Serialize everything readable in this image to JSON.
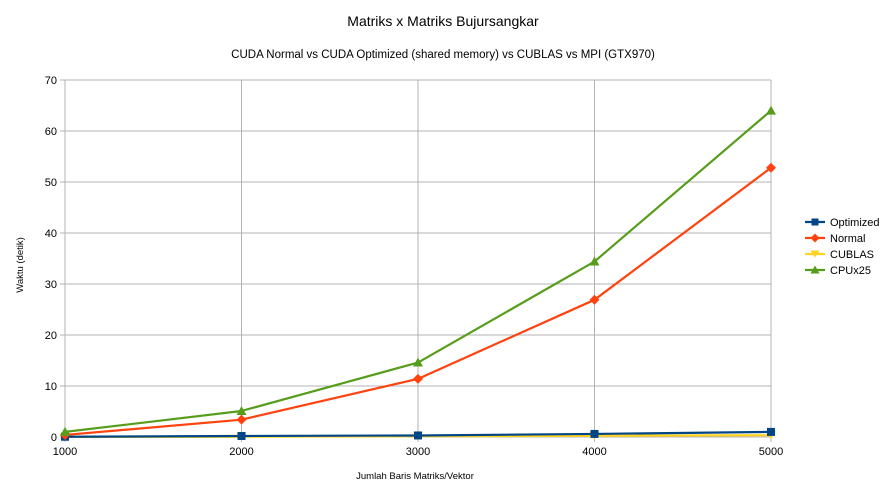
{
  "chart_data": {
    "type": "line",
    "title": "Matriks x Matriks Bujursangkar",
    "subtitle": "CUDA Normal vs CUDA Optimized (shared memory) vs CUBLAS vs MPI (GTX970)",
    "xlabel": "Jumlah Baris Matriks/Vektor",
    "ylabel": "Waktu (detik)",
    "x": [
      1000,
      2000,
      3000,
      4000,
      5000
    ],
    "x_tick_labels": [
      "1000",
      "2000",
      "3000",
      "4000",
      "5000"
    ],
    "xlim": [
      1000,
      5000
    ],
    "ylim": [
      0,
      70
    ],
    "y_ticks": [
      0,
      10,
      20,
      30,
      40,
      50,
      60,
      70
    ],
    "y_tick_labels": [
      "0",
      "10",
      "20",
      "30",
      "40",
      "50",
      "60",
      "70"
    ],
    "grid": true,
    "legend_position": "right",
    "series": [
      {
        "name": "Optimized",
        "color": "#004586",
        "marker": "square",
        "values": [
          0.05,
          0.2,
          0.3,
          0.6,
          1.0
        ]
      },
      {
        "name": "Normal",
        "color": "#ff420e",
        "marker": "diamond",
        "values": [
          0.4,
          3.4,
          11.4,
          26.9,
          52.8
        ]
      },
      {
        "name": "CUBLAS",
        "color": "#ffd320",
        "marker": "triangle-down",
        "values": [
          0.02,
          0.05,
          0.15,
          0.25,
          0.35
        ]
      },
      {
        "name": "CPUx25",
        "color": "#579d1c",
        "marker": "triangle-up",
        "values": [
          1.0,
          5.1,
          14.6,
          34.4,
          64.0
        ]
      }
    ]
  }
}
